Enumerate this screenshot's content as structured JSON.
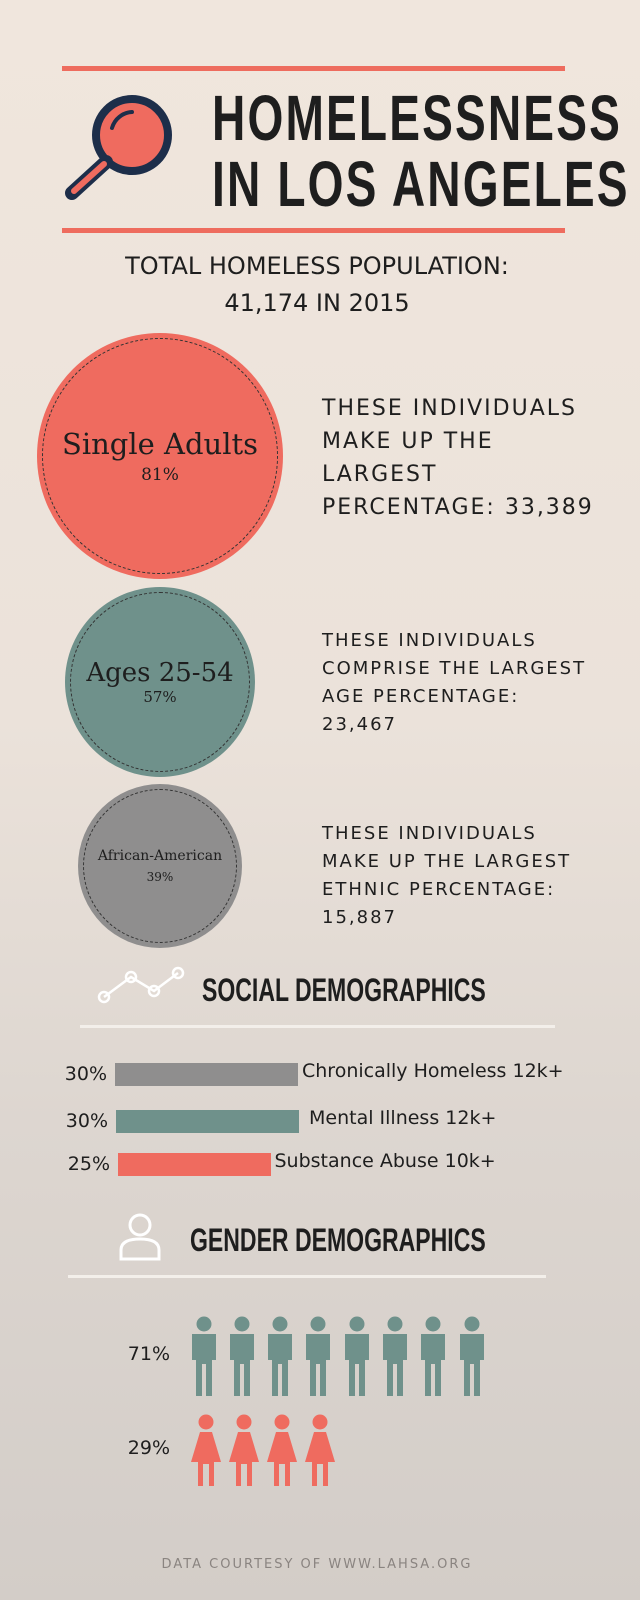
{
  "header": {
    "title_lines": [
      "HOMELESSNESS",
      "IN LOS ANGELES"
    ]
  },
  "total": {
    "lines": [
      "TOTAL HOMELESS POPULATION:",
      "41,174 IN 2015"
    ]
  },
  "groups": [
    {
      "label": "Single Adults",
      "percent": "81%",
      "description": [
        "THESE INDIVIDUALS",
        "MAKE UP THE",
        "LARGEST",
        "PERCENTAGE: 33,389"
      ]
    },
    {
      "label": "Ages 25-54",
      "percent": "57%",
      "description": [
        "THESE INDIVIDUALS",
        "COMPRISE THE LARGEST",
        "AGE PERCENTAGE:",
        "23,467"
      ]
    },
    {
      "label": "African-American",
      "percent": "39%",
      "description": [
        "THESE INDIVIDUALS",
        "MAKE UP THE LARGEST",
        "ETHNIC PERCENTAGE:",
        "15,887"
      ]
    }
  ],
  "social": {
    "title": "SOCIAL DEMOGRAPHICS",
    "bars": [
      {
        "value": 30,
        "label": "30%",
        "text": "Chronically Homeless 12k+",
        "color": "#8f8e8e"
      },
      {
        "value": 30,
        "label": "30%",
        "text": "Mental Illness 12k+",
        "color": "#6f918b"
      },
      {
        "value": 25,
        "label": "25%",
        "text": "Substance Abuse 10k+",
        "color": "#ef6b5f"
      }
    ]
  },
  "gender": {
    "title": "GENDER DEMOGRAPHICS",
    "rows": [
      {
        "label": "71%"
      },
      {
        "label": "29%"
      }
    ]
  },
  "footer": "DATA COURTESY OF WWW.LAHSA.ORG"
}
